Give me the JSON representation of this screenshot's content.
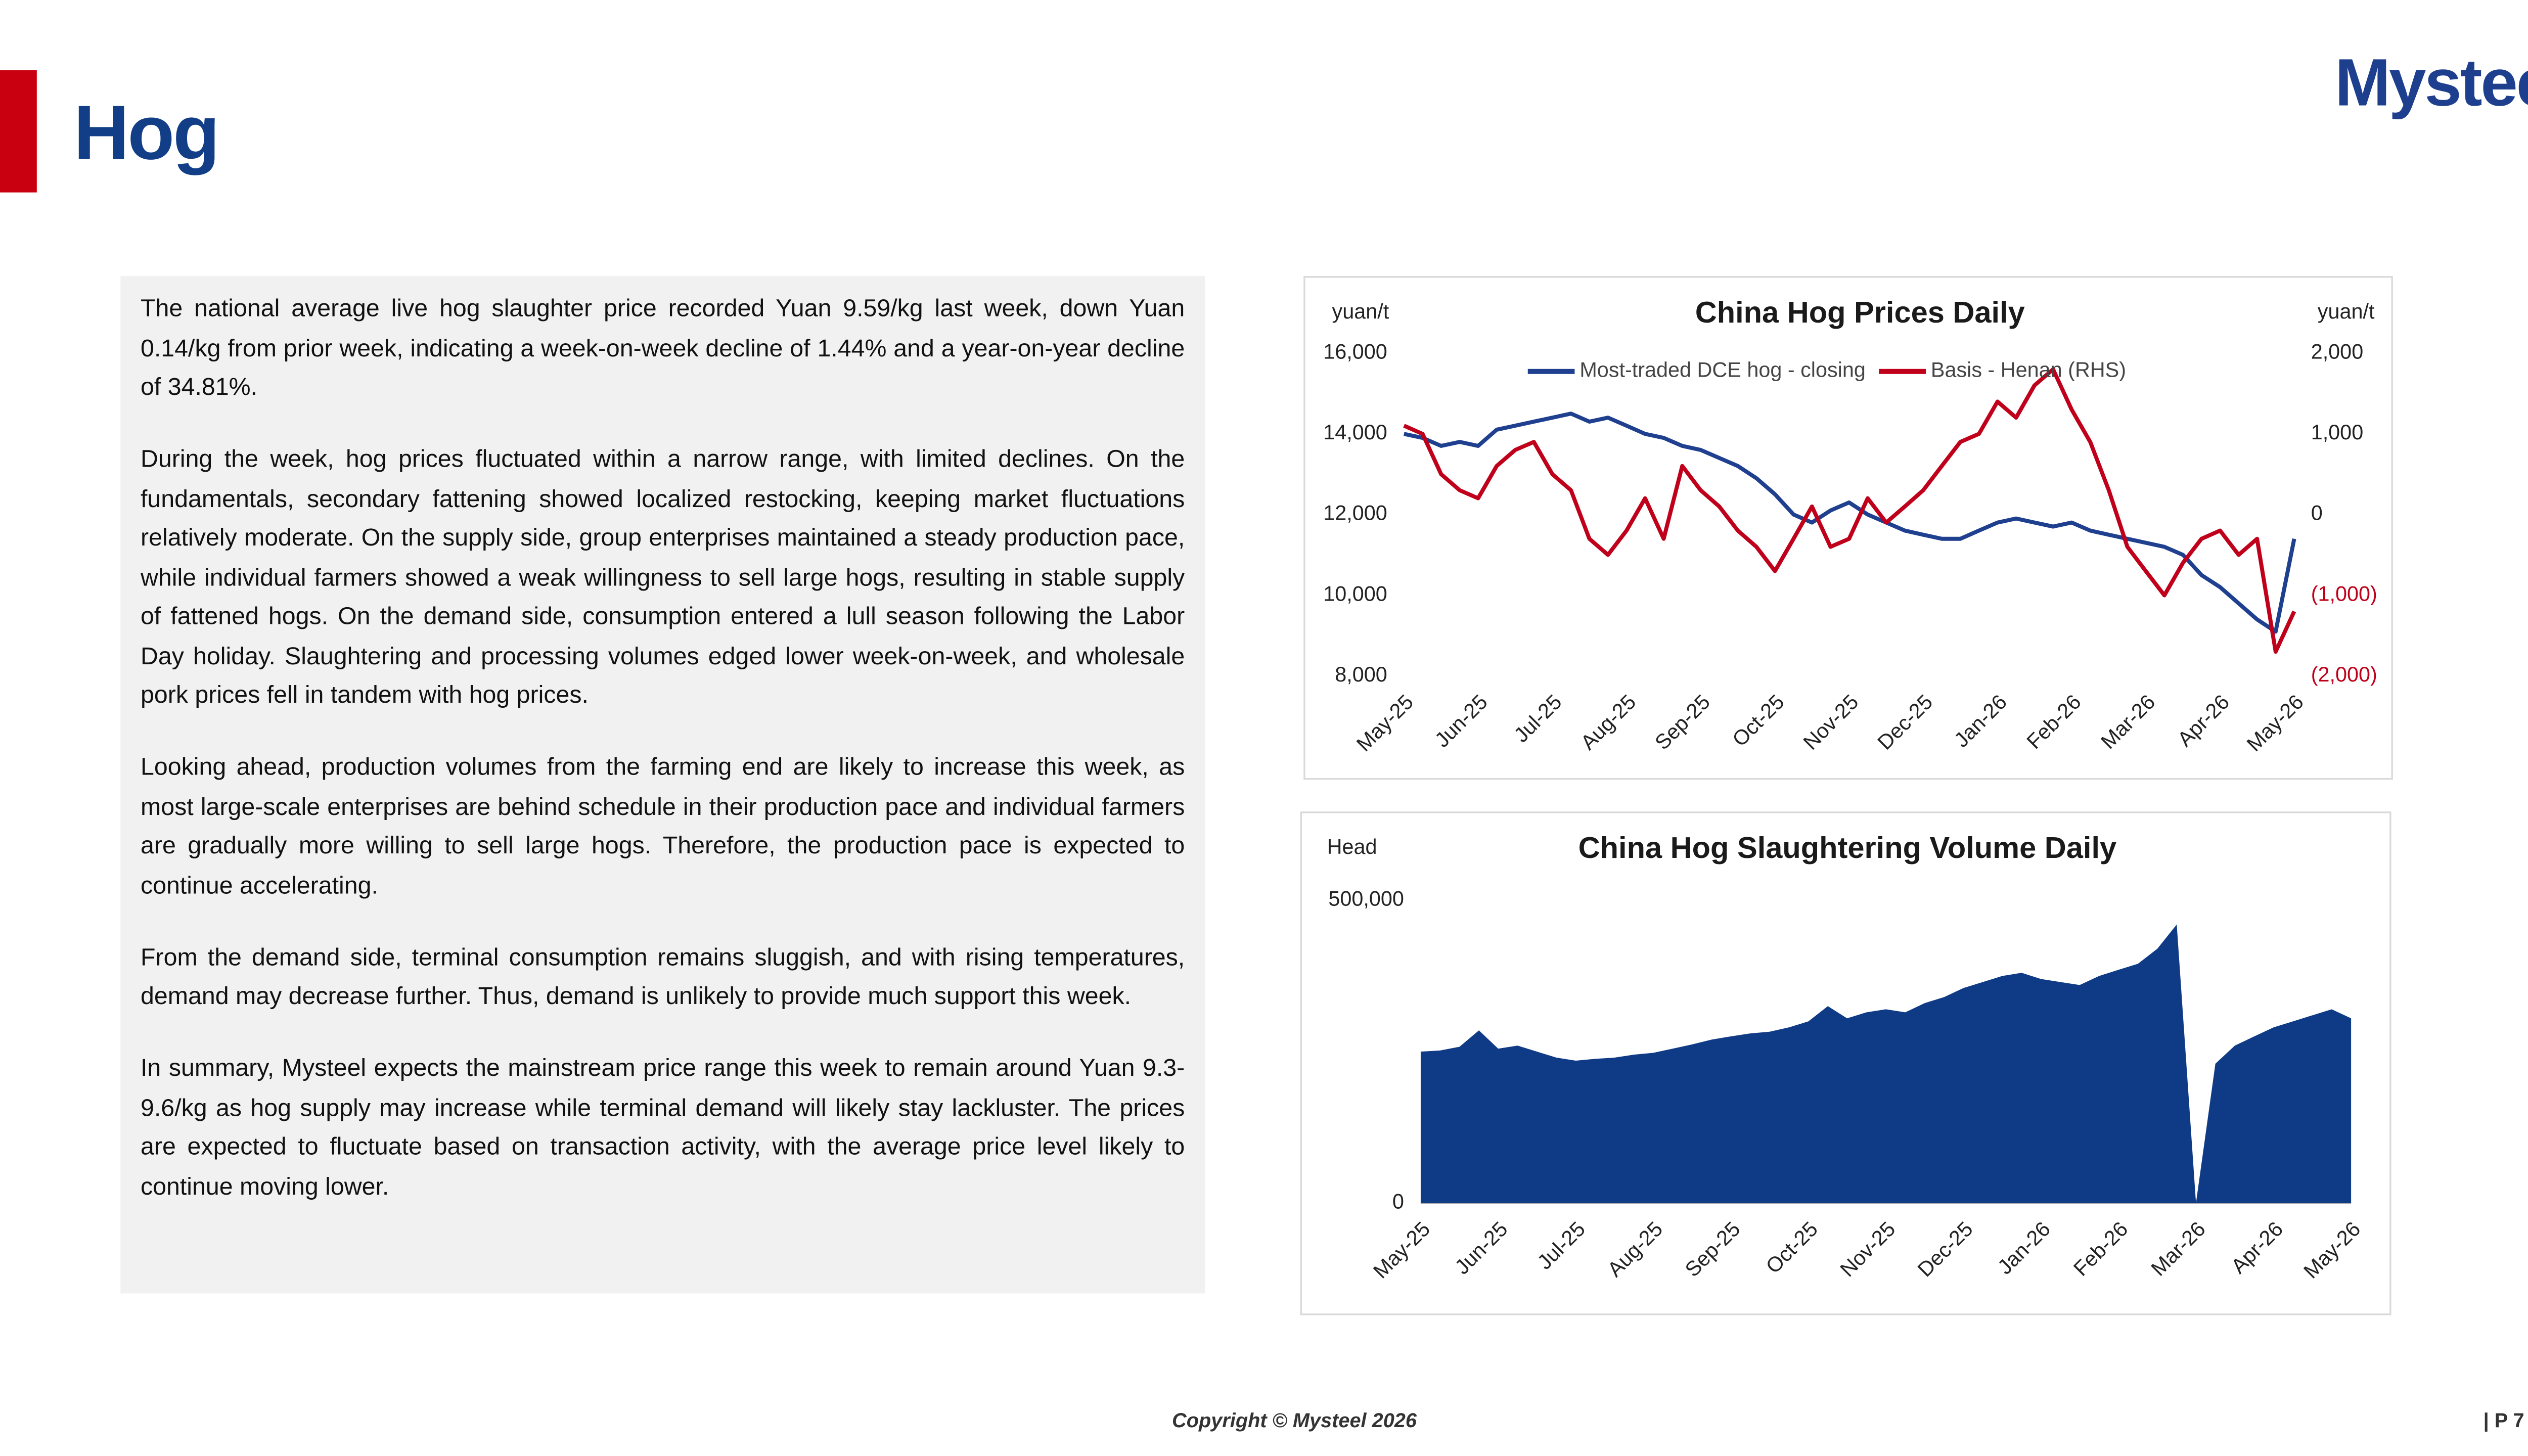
{
  "header": {
    "title": "Hog",
    "logo": "Mysteel"
  },
  "body": {
    "paragraphs": [
      "The national average live hog slaughter price recorded Yuan 9.59/kg last week, down Yuan 0.14/kg from prior week, indicating a week-on-week decline of 1.44% and a year-on-year decline of 34.81%.",
      "During the week, hog prices fluctuated within a narrow range, with limited declines. On the fundamentals, secondary fattening showed localized restocking, keeping market fluctuations relatively moderate. On the supply side, group enterprises maintained a steady production pace, while individual farmers showed a weak willingness to sell large hogs, resulting in stable supply of fattened hogs. On the demand side, consumption entered a lull season following the Labor Day holiday. Slaughtering and processing volumes edged lower week-on-week, and wholesale pork prices fell in tandem with hog prices.",
      "Looking ahead, production volumes from the farming end are likely to increase this week, as most large-scale enterprises are behind schedule in their production pace and individual farmers are gradually more willing to sell large hogs. Therefore, the production pace is expected to continue accelerating.",
      "From the demand side, terminal consumption remains sluggish, and with rising temperatures, demand may decrease further. Thus, demand is unlikely to provide much support this week.",
      "In summary, Mysteel expects the mainstream price range this week to remain around Yuan 9.3-9.6/kg as hog supply may increase while terminal demand will likely stay lackluster. The prices are expected to fluctuate based on transaction activity, with the average price level likely to continue moving lower."
    ]
  },
  "footer": {
    "copyright": "Copyright © Mysteel 2026",
    "page": "| P 7"
  },
  "chart_data": [
    {
      "type": "line",
      "title": "China Hog Prices Daily",
      "ylabel": "yuan/t",
      "y2label": "yuan/t",
      "legend": "top",
      "grid": false,
      "categories": [
        "May-25",
        null,
        null,
        null,
        "Jun-25",
        null,
        null,
        null,
        "Jul-25",
        null,
        null,
        null,
        "Aug-25",
        null,
        null,
        null,
        "Sep-25",
        null,
        null,
        null,
        "Oct-25",
        null,
        null,
        null,
        "Nov-25",
        null,
        null,
        null,
        "Dec-25",
        null,
        null,
        null,
        "Jan-26",
        null,
        null,
        null,
        "Feb-26",
        null,
        null,
        null,
        "Mar-26",
        null,
        null,
        null,
        "Apr-26",
        null,
        null,
        null,
        "May-26"
      ],
      "ylim": [
        8000,
        16000
      ],
      "yticks": [
        {
          "value": 8000,
          "label": "8,000"
        },
        {
          "value": 10000,
          "label": "10,000"
        },
        {
          "value": 12000,
          "label": "12,000"
        },
        {
          "value": 14000,
          "label": "14,000"
        },
        {
          "value": 16000,
          "label": "16,000"
        }
      ],
      "y2lim": [
        -2000,
        2000
      ],
      "y2ticks": [
        {
          "value": -2000,
          "label": "(2,000)"
        },
        {
          "value": -1000,
          "label": "(1,000)"
        },
        0,
        {
          "value": 1000,
          "label": "1,000"
        },
        {
          "value": 2000,
          "label": "2,000"
        }
      ],
      "series": [
        {
          "name": "Most-traded DCE hog - closing",
          "color": "#1f3f8f",
          "values": [
            14000,
            13900,
            13700,
            13800,
            13700,
            14100,
            14200,
            14300,
            14400,
            14500,
            14300,
            14400,
            14200,
            14000,
            13900,
            13700,
            13600,
            13400,
            13200,
            12900,
            12500,
            12000,
            11800,
            12100,
            12300,
            12000,
            11800,
            11600,
            11500,
            11400,
            11400,
            11600,
            11800,
            11900,
            11800,
            11700,
            11800,
            11600,
            11500,
            11400,
            11300,
            11200,
            11000,
            10500,
            10200,
            9800,
            9400,
            9100,
            11400
          ]
        },
        {
          "name": "Basis - Henan (RHS)",
          "color": "#c0001a",
          "axis": "y2",
          "values": [
            1100,
            1000,
            500,
            300,
            200,
            600,
            800,
            900,
            500,
            300,
            -300,
            -500,
            -200,
            200,
            -300,
            600,
            300,
            100,
            -200,
            -400,
            -700,
            -300,
            100,
            -400,
            -300,
            200,
            -100,
            100,
            300,
            600,
            900,
            1000,
            1400,
            1200,
            1600,
            1800,
            1300,
            900,
            300,
            -400,
            -700,
            -1000,
            -600,
            -300,
            -200,
            -500,
            -300,
            -1700,
            -1200
          ]
        }
      ]
    },
    {
      "type": "area",
      "title": "China Hog Slaughtering Volume Daily",
      "ylabel": "Head",
      "grid": false,
      "categories": [
        "May-25",
        null,
        null,
        null,
        "Jun-25",
        null,
        null,
        null,
        "Jul-25",
        null,
        null,
        null,
        "Aug-25",
        null,
        null,
        null,
        "Sep-25",
        null,
        null,
        null,
        "Oct-25",
        null,
        null,
        null,
        "Nov-25",
        null,
        null,
        null,
        "Dec-25",
        null,
        null,
        null,
        "Jan-26",
        null,
        null,
        null,
        "Feb-26",
        null,
        null,
        null,
        "Mar-26",
        null,
        null,
        null,
        "Apr-26",
        null,
        null,
        null,
        "May-26"
      ],
      "ylim": [
        0,
        500000
      ],
      "yticks": [
        0,
        {
          "value": 500000,
          "label": "500,000"
        }
      ],
      "series": [
        {
          "name": "Slaughtering volume",
          "color": "#0f3a85",
          "values": [
            250000,
            252000,
            258000,
            285000,
            255000,
            260000,
            250000,
            240000,
            235000,
            238000,
            240000,
            245000,
            248000,
            255000,
            262000,
            270000,
            275000,
            280000,
            283000,
            290000,
            300000,
            325000,
            305000,
            315000,
            320000,
            315000,
            330000,
            340000,
            355000,
            365000,
            375000,
            380000,
            370000,
            365000,
            360000,
            375000,
            385000,
            395000,
            420000,
            460000,
            0,
            230000,
            260000,
            275000,
            290000,
            300000,
            310000,
            320000,
            305000
          ]
        }
      ]
    }
  ]
}
